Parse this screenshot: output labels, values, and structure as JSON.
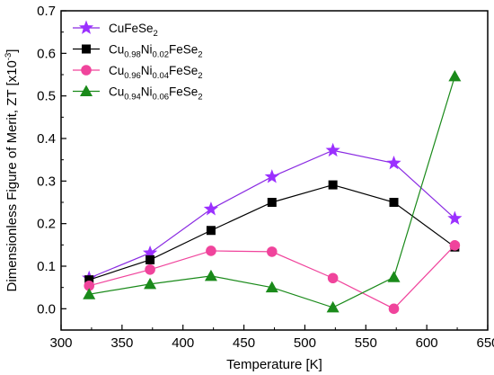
{
  "chart_data": {
    "type": "line",
    "xlabel": "Temperature [K]",
    "ylabel": "Dimensionless Figure of Merit, ZT [x10",
    "ylabel_exponent": "-3",
    "ylabel_suffix": "]",
    "xlim": [
      300,
      650
    ],
    "ylim": [
      -0.05,
      0.7
    ],
    "xticks": [
      300,
      350,
      400,
      450,
      500,
      550,
      600,
      650
    ],
    "yticks": [
      0.0,
      0.1,
      0.2,
      0.3,
      0.4,
      0.5,
      0.6,
      0.7
    ],
    "ytick_labels": [
      "0.0",
      "0.1",
      "0.2",
      "0.3",
      "0.4",
      "0.5",
      "0.6",
      "0.7"
    ],
    "grid": false,
    "legend_position": "top-left",
    "x": [
      323,
      373,
      423,
      473,
      523,
      573,
      623
    ],
    "series": [
      {
        "label_parts": [
          {
            "text": "CuFeSe",
            "sub": false
          },
          {
            "text": "2",
            "sub": true
          }
        ],
        "marker": "star",
        "color": "#9b30ff",
        "line_color": "#8a2be2",
        "values": [
          0.072,
          0.131,
          0.234,
          0.31,
          0.372,
          0.342,
          0.212
        ]
      },
      {
        "label_parts": [
          {
            "text": "Cu",
            "sub": false
          },
          {
            "text": "0.98",
            "sub": true
          },
          {
            "text": "Ni",
            "sub": false
          },
          {
            "text": "0.02",
            "sub": true
          },
          {
            "text": "FeSe",
            "sub": false
          },
          {
            "text": "2",
            "sub": true
          }
        ],
        "marker": "square",
        "color": "#000000",
        "line_color": "#000000",
        "values": [
          0.068,
          0.115,
          0.184,
          0.25,
          0.291,
          0.25,
          0.145
        ]
      },
      {
        "label_parts": [
          {
            "text": "Cu",
            "sub": false
          },
          {
            "text": "0.96",
            "sub": true
          },
          {
            "text": "Ni",
            "sub": false
          },
          {
            "text": "0.04",
            "sub": true
          },
          {
            "text": "FeSe",
            "sub": false
          },
          {
            "text": "2",
            "sub": true
          }
        ],
        "marker": "circle",
        "color": "#f0449c",
        "line_color": "#f0449c",
        "values": [
          0.054,
          0.092,
          0.136,
          0.134,
          0.072,
          0.0,
          0.149
        ]
      },
      {
        "label_parts": [
          {
            "text": "Cu",
            "sub": false
          },
          {
            "text": "0.94",
            "sub": true
          },
          {
            "text": "Ni",
            "sub": false
          },
          {
            "text": "0.06",
            "sub": true
          },
          {
            "text": "FeSe",
            "sub": false
          },
          {
            "text": "2",
            "sub": true
          }
        ],
        "marker": "triangle",
        "color": "#1a8a1a",
        "line_color": "#1a8a1a",
        "values": [
          0.034,
          0.058,
          0.077,
          0.05,
          0.003,
          0.074,
          0.546
        ]
      }
    ]
  }
}
